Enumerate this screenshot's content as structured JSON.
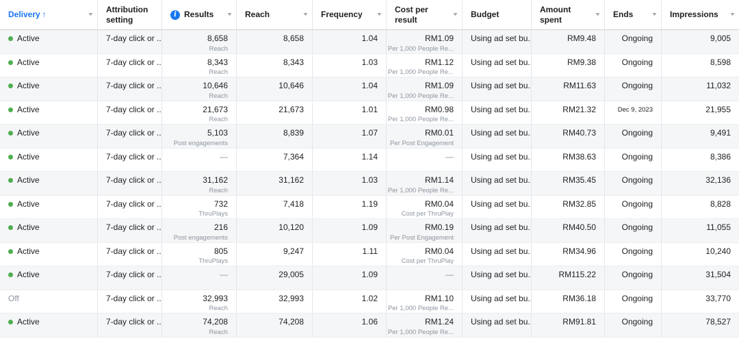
{
  "icons": {
    "caret_glyph": "▼",
    "sort_asc_glyph": "↑",
    "info_glyph": "i"
  },
  "colors": {
    "accent_blue": "#1877f2",
    "active_green": "#4fae50",
    "muted_gray": "#8d949e",
    "stripe_gray": "#f5f6f7"
  },
  "table": {
    "columns": [
      {
        "key": "delivery",
        "label": "Delivery",
        "cellAlign": "left",
        "caret": true,
        "sort": true,
        "info": false,
        "accent": true
      },
      {
        "key": "attribution",
        "label": "Attribution setting",
        "cellAlign": "left",
        "caret": false,
        "sort": false,
        "info": false,
        "accent": false
      },
      {
        "key": "results",
        "label": "Results",
        "cellAlign": "right",
        "caret": true,
        "sort": false,
        "info": true,
        "accent": false
      },
      {
        "key": "reach",
        "label": "Reach",
        "cellAlign": "right",
        "caret": true,
        "sort": false,
        "info": false,
        "accent": false
      },
      {
        "key": "frequency",
        "label": "Frequency",
        "cellAlign": "right",
        "caret": true,
        "sort": false,
        "info": false,
        "accent": false
      },
      {
        "key": "cost",
        "label": "Cost per result",
        "cellAlign": "right",
        "caret": true,
        "sort": false,
        "info": false,
        "accent": false
      },
      {
        "key": "budget",
        "label": "Budget",
        "cellAlign": "left",
        "caret": false,
        "sort": false,
        "info": false,
        "accent": false
      },
      {
        "key": "spent",
        "label": "Amount spent",
        "cellAlign": "right",
        "caret": true,
        "sort": false,
        "info": false,
        "accent": false
      },
      {
        "key": "ends",
        "label": "Ends",
        "cellAlign": "right",
        "caret": true,
        "sort": false,
        "info": false,
        "accent": false
      },
      {
        "key": "impressions",
        "label": "Impressions",
        "cellAlign": "right",
        "caret": true,
        "sort": false,
        "info": false,
        "accent": false
      }
    ],
    "rows": [
      {
        "delivery": {
          "value": "Active",
          "dot": true
        },
        "attribution": {
          "value": "7-day click or ..."
        },
        "results": {
          "value": "8,658",
          "sub": "Reach"
        },
        "reach": {
          "value": "8,658"
        },
        "frequency": {
          "value": "1.04"
        },
        "cost": {
          "value": "RM1.09",
          "sub": "Per 1,000 People Re..."
        },
        "budget": {
          "value": "Using ad set bu..."
        },
        "spent": {
          "value": "RM9.48"
        },
        "ends": {
          "value": "Ongoing"
        },
        "impressions": {
          "value": "9,005"
        }
      },
      {
        "delivery": {
          "value": "Active",
          "dot": true
        },
        "attribution": {
          "value": "7-day click or ..."
        },
        "results": {
          "value": "8,343",
          "sub": "Reach"
        },
        "reach": {
          "value": "8,343"
        },
        "frequency": {
          "value": "1.03"
        },
        "cost": {
          "value": "RM1.12",
          "sub": "Per 1,000 People Re..."
        },
        "budget": {
          "value": "Using ad set bu..."
        },
        "spent": {
          "value": "RM9.38"
        },
        "ends": {
          "value": "Ongoing"
        },
        "impressions": {
          "value": "8,598"
        }
      },
      {
        "delivery": {
          "value": "Active",
          "dot": true
        },
        "attribution": {
          "value": "7-day click or ..."
        },
        "results": {
          "value": "10,646",
          "sub": "Reach"
        },
        "reach": {
          "value": "10,646"
        },
        "frequency": {
          "value": "1.04"
        },
        "cost": {
          "value": "RM1.09",
          "sub": "Per 1,000 People Re..."
        },
        "budget": {
          "value": "Using ad set bu..."
        },
        "spent": {
          "value": "RM11.63"
        },
        "ends": {
          "value": "Ongoing"
        },
        "impressions": {
          "value": "11,032"
        }
      },
      {
        "delivery": {
          "value": "Active",
          "dot": true
        },
        "attribution": {
          "value": "7-day click or ..."
        },
        "results": {
          "value": "21,673",
          "sub": "Reach"
        },
        "reach": {
          "value": "21,673"
        },
        "frequency": {
          "value": "1.01"
        },
        "cost": {
          "value": "RM0.98",
          "sub": "Per 1,000 People Re..."
        },
        "budget": {
          "value": "Using ad set bu..."
        },
        "spent": {
          "value": "RM21.32"
        },
        "ends": {
          "value": "Dec 9, 2023",
          "small": true
        },
        "impressions": {
          "value": "21,955"
        }
      },
      {
        "delivery": {
          "value": "Active",
          "dot": true
        },
        "attribution": {
          "value": "7-day click or ..."
        },
        "results": {
          "value": "5,103",
          "sub": "Post engagements"
        },
        "reach": {
          "value": "8,839"
        },
        "frequency": {
          "value": "1.07"
        },
        "cost": {
          "value": "RM0.01",
          "sub": "Per Post Engagement"
        },
        "budget": {
          "value": "Using ad set bu..."
        },
        "spent": {
          "value": "RM40.73"
        },
        "ends": {
          "value": "Ongoing"
        },
        "impressions": {
          "value": "9,491"
        }
      },
      {
        "delivery": {
          "value": "Active",
          "dot": true
        },
        "attribution": {
          "value": "7-day click or ..."
        },
        "results": {
          "value": "—",
          "muted": true
        },
        "reach": {
          "value": "7,364"
        },
        "frequency": {
          "value": "1.14"
        },
        "cost": {
          "value": "—",
          "muted": true
        },
        "budget": {
          "value": "Using ad set bu..."
        },
        "spent": {
          "value": "RM38.63"
        },
        "ends": {
          "value": "Ongoing"
        },
        "impressions": {
          "value": "8,386"
        }
      },
      {
        "delivery": {
          "value": "Active",
          "dot": true
        },
        "attribution": {
          "value": "7-day click or ..."
        },
        "results": {
          "value": "31,162",
          "sub": "Reach"
        },
        "reach": {
          "value": "31,162"
        },
        "frequency": {
          "value": "1.03"
        },
        "cost": {
          "value": "RM1.14",
          "sub": "Per 1,000 People Re..."
        },
        "budget": {
          "value": "Using ad set bu..."
        },
        "spent": {
          "value": "RM35.45"
        },
        "ends": {
          "value": "Ongoing"
        },
        "impressions": {
          "value": "32,136"
        }
      },
      {
        "delivery": {
          "value": "Active",
          "dot": true
        },
        "attribution": {
          "value": "7-day click or ..."
        },
        "results": {
          "value": "732",
          "sub": "ThruPlays"
        },
        "reach": {
          "value": "7,418"
        },
        "frequency": {
          "value": "1.19"
        },
        "cost": {
          "value": "RM0.04",
          "sub": "Cost per ThruPlay"
        },
        "budget": {
          "value": "Using ad set bu..."
        },
        "spent": {
          "value": "RM32.85"
        },
        "ends": {
          "value": "Ongoing"
        },
        "impressions": {
          "value": "8,828"
        }
      },
      {
        "delivery": {
          "value": "Active",
          "dot": true
        },
        "attribution": {
          "value": "7-day click or ..."
        },
        "results": {
          "value": "216",
          "sub": "Post engagements"
        },
        "reach": {
          "value": "10,120"
        },
        "frequency": {
          "value": "1.09"
        },
        "cost": {
          "value": "RM0.19",
          "sub": "Per Post Engagement"
        },
        "budget": {
          "value": "Using ad set bu..."
        },
        "spent": {
          "value": "RM40.50"
        },
        "ends": {
          "value": "Ongoing"
        },
        "impressions": {
          "value": "11,055"
        }
      },
      {
        "delivery": {
          "value": "Active",
          "dot": true
        },
        "attribution": {
          "value": "7-day click or ..."
        },
        "results": {
          "value": "805",
          "sub": "ThruPlays"
        },
        "reach": {
          "value": "9,247"
        },
        "frequency": {
          "value": "1.11"
        },
        "cost": {
          "value": "RM0.04",
          "sub": "Cost per ThruPlay"
        },
        "budget": {
          "value": "Using ad set bu..."
        },
        "spent": {
          "value": "RM34.96"
        },
        "ends": {
          "value": "Ongoing"
        },
        "impressions": {
          "value": "10,240"
        }
      },
      {
        "delivery": {
          "value": "Active",
          "dot": true
        },
        "attribution": {
          "value": "7-day click or ..."
        },
        "results": {
          "value": "—",
          "muted": true
        },
        "reach": {
          "value": "29,005"
        },
        "frequency": {
          "value": "1.09"
        },
        "cost": {
          "value": "—",
          "muted": true
        },
        "budget": {
          "value": "Using ad set bu..."
        },
        "spent": {
          "value": "RM115.22"
        },
        "ends": {
          "value": "Ongoing"
        },
        "impressions": {
          "value": "31,504"
        }
      },
      {
        "delivery": {
          "value": "Off",
          "dot": false,
          "muted": true
        },
        "attribution": {
          "value": "7-day click or ..."
        },
        "results": {
          "value": "32,993",
          "sub": "Reach"
        },
        "reach": {
          "value": "32,993"
        },
        "frequency": {
          "value": "1.02"
        },
        "cost": {
          "value": "RM1.10",
          "sub": "Per 1,000 People Re..."
        },
        "budget": {
          "value": "Using ad set bu..."
        },
        "spent": {
          "value": "RM36.18"
        },
        "ends": {
          "value": "Ongoing"
        },
        "impressions": {
          "value": "33,770"
        }
      },
      {
        "delivery": {
          "value": "Active",
          "dot": true
        },
        "attribution": {
          "value": "7-day click or ..."
        },
        "results": {
          "value": "74,208",
          "sub": "Reach"
        },
        "reach": {
          "value": "74,208"
        },
        "frequency": {
          "value": "1.06"
        },
        "cost": {
          "value": "RM1.24",
          "sub": "Per 1,000 People Re..."
        },
        "budget": {
          "value": "Using ad set bu..."
        },
        "spent": {
          "value": "RM91.81"
        },
        "ends": {
          "value": "Ongoing"
        },
        "impressions": {
          "value": "78,527"
        }
      }
    ]
  }
}
